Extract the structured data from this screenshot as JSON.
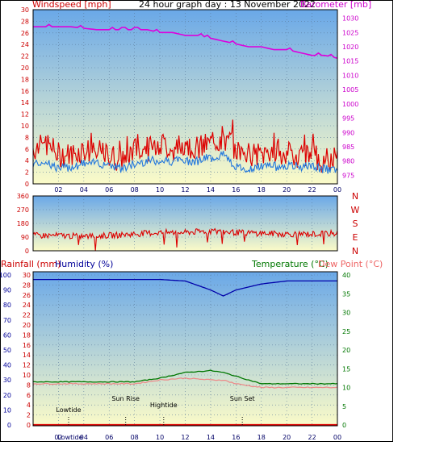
{
  "chart_data": [
    {
      "type": "line",
      "title": "24 hour graph day : 13 November 2022",
      "left_axis_title": "Windspeed [mph]",
      "right_axis_title": "Barometer [mb]",
      "ylim_left": [
        0,
        30
      ],
      "ylim_right": [
        972,
        1033
      ],
      "left_ticks": [
        "0",
        "2",
        "4",
        "6",
        "8",
        "10",
        "12",
        "14",
        "16",
        "18",
        "20",
        "22",
        "24",
        "26",
        "28",
        "30"
      ],
      "right_ticks": [
        "975",
        "980",
        "985",
        "990",
        "995",
        "1000",
        "1005",
        "1010",
        "1015",
        "1020",
        "1025",
        "1030"
      ],
      "x_ticks": [
        "02",
        "04",
        "06",
        "08",
        "10",
        "12",
        "14",
        "16",
        "18",
        "20",
        "22",
        "00"
      ],
      "series": [
        {
          "values_hour": [
            0,
            1,
            2,
            3,
            4,
            5,
            6,
            7,
            8,
            9,
            10,
            11,
            12,
            13,
            14,
            15,
            16,
            17,
            18,
            19,
            20,
            21,
            22,
            23,
            24
          ],
          "gust": [
            6,
            7,
            5,
            5,
            6,
            5,
            5,
            4,
            6,
            6,
            7,
            6,
            7,
            6,
            7,
            8,
            6,
            5,
            5,
            6,
            5,
            5,
            5,
            4,
            4
          ],
          "avg": [
            3.5,
            4,
            2.5,
            3,
            3.5,
            3.5,
            3.5,
            2.5,
            3.5,
            4,
            4,
            4,
            4,
            4,
            4.5,
            5,
            3,
            2.5,
            3,
            3,
            3,
            3,
            3,
            2.5,
            2.5
          ]
        },
        {
          "pressure_hour": [
            0,
            1,
            2,
            3,
            4,
            5,
            6,
            7,
            8,
            9,
            10,
            11,
            12,
            13,
            14,
            15,
            16,
            17,
            18,
            19,
            20,
            21,
            22,
            23,
            24
          ],
          "pressure": [
            1027,
            1027,
            1027,
            1027,
            1026.5,
            1026,
            1026,
            1026,
            1026,
            1026,
            1025,
            1025,
            1024,
            1024,
            1023,
            1022,
            1021,
            1020,
            1020,
            1019,
            1019,
            1018,
            1017,
            1017,
            1016
          ]
        }
      ],
      "colors": {
        "wind": "#dd0000",
        "avg": "#2277dd",
        "baro": "#dd00dd"
      }
    },
    {
      "type": "scatter",
      "left_ticks": [
        "0",
        "90",
        "180",
        "270",
        "360"
      ],
      "right_labels": [
        "N",
        "W",
        "S",
        "E",
        "N"
      ],
      "ylim": [
        0,
        360
      ],
      "direction_hour": [
        0,
        2,
        4,
        6,
        8,
        10,
        12,
        14,
        16,
        18,
        20,
        22,
        24
      ],
      "direction": [
        100,
        100,
        95,
        100,
        110,
        120,
        120,
        130,
        120,
        115,
        110,
        110,
        115
      ],
      "color": "#dd0000"
    },
    {
      "type": "line",
      "left_axis_titles": [
        "Rainfall (mm)",
        "Humidity (%)"
      ],
      "right_axis_titles": [
        "Temperature (°C)",
        "Dew Point (°C)"
      ],
      "rain_ticks": [
        "0",
        "2",
        "4",
        "6",
        "8",
        "10",
        "12",
        "14",
        "16",
        "18",
        "20",
        "22",
        "24",
        "26",
        "28",
        "30"
      ],
      "humidity_ticks": [
        "0",
        "10",
        "20",
        "30",
        "40",
        "50",
        "60",
        "70",
        "80",
        "90",
        "100"
      ],
      "temp_ticks": [
        "0",
        "5",
        "10",
        "15",
        "20",
        "25",
        "30",
        "35",
        "40"
      ],
      "ylim_rain": [
        0,
        30
      ],
      "ylim_temp": [
        0,
        40
      ],
      "x_ticks": [
        "02",
        "04",
        "06",
        "08",
        "10",
        "12",
        "14",
        "16",
        "18",
        "20",
        "22",
        "00"
      ],
      "x_tick_second": "Lowtide",
      "hour": [
        0,
        2,
        4,
        6,
        8,
        10,
        12,
        14,
        15,
        16,
        18,
        20,
        22,
        24
      ],
      "humidity": [
        97,
        97,
        97,
        97,
        97,
        97,
        96,
        90,
        86,
        90,
        94,
        96,
        96,
        96
      ],
      "temperature": [
        11.5,
        11.5,
        11.5,
        11.5,
        11.5,
        12.5,
        14,
        14.5,
        14,
        13,
        11,
        11,
        11,
        11
      ],
      "dew_point": [
        11,
        11,
        11,
        11,
        11,
        12,
        12.5,
        12,
        12,
        11,
        10,
        10,
        10,
        10
      ],
      "rainfall": [
        0,
        0,
        0,
        0,
        0,
        0,
        0,
        0,
        0,
        0,
        0,
        0,
        0,
        0
      ],
      "annotations": [
        "Lowtide",
        "Sun Rise",
        "Hightide",
        "Sun Set"
      ],
      "annotation_hour": [
        2.8,
        7.3,
        10.3,
        16.5
      ],
      "colors": {
        "humidity": "#0000aa",
        "temperature": "#007700",
        "dew_point": "#ee8888",
        "rain": "#dd0000"
      }
    }
  ]
}
